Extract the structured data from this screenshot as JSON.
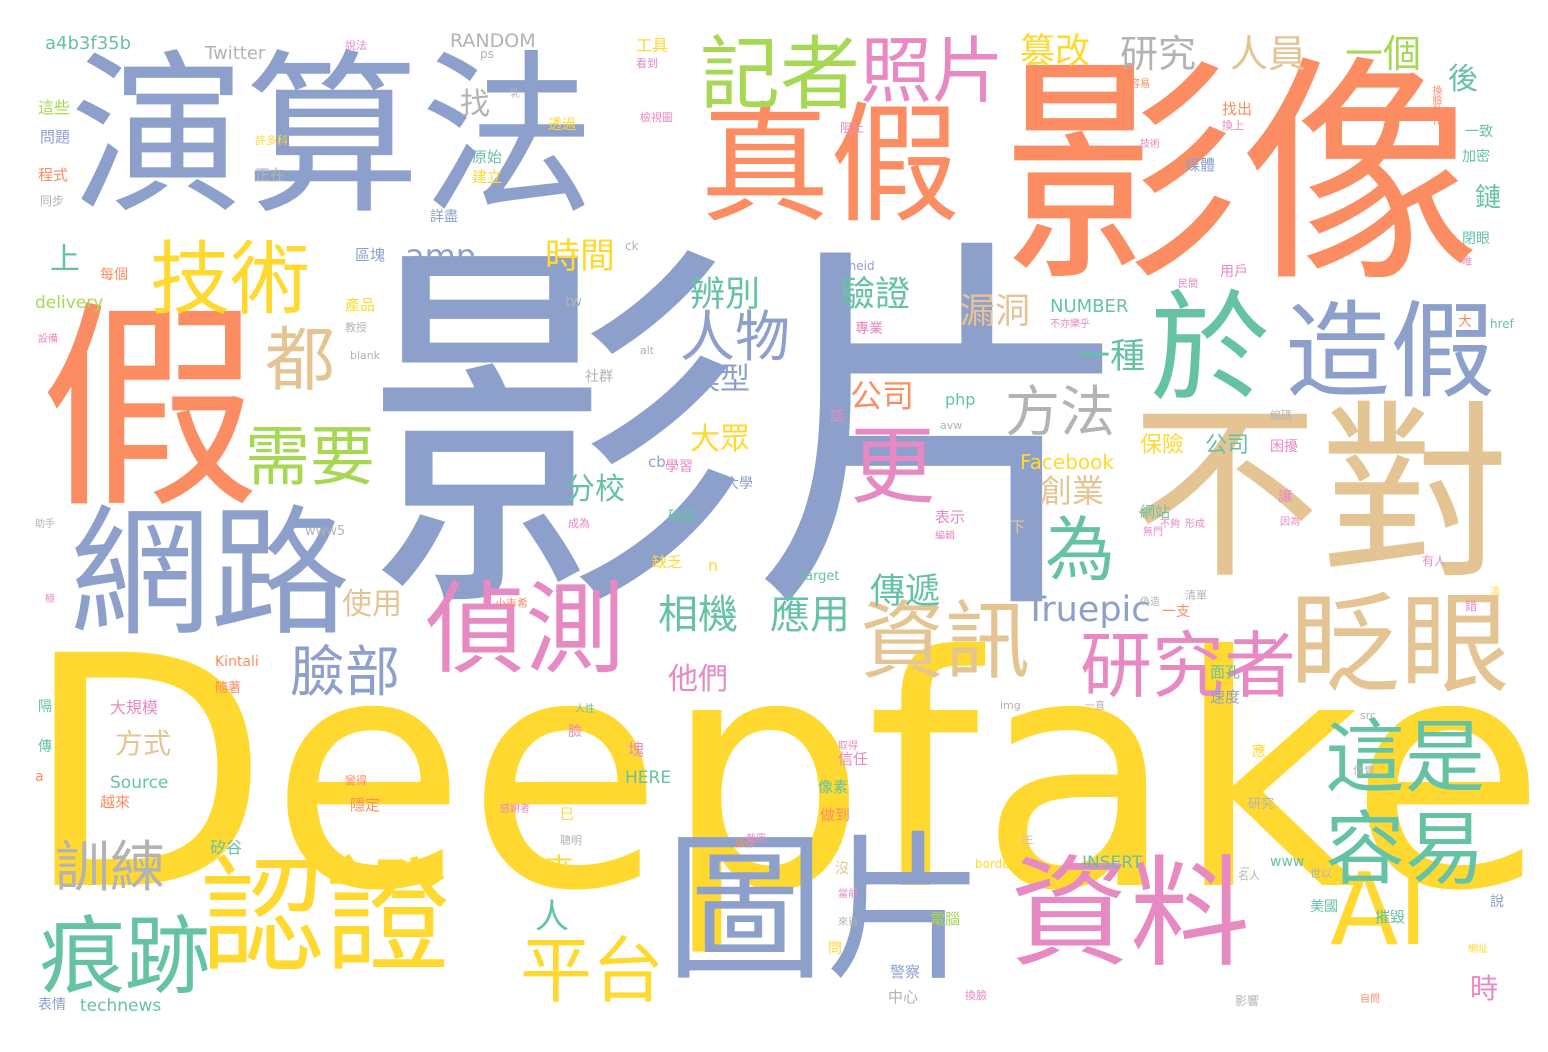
{
  "palette": {
    "blue": "#8da0cb",
    "orange": "#fc8d62",
    "green": "#66c2a5",
    "yellow": "#ffd92f",
    "tan": "#e5c494",
    "pink": "#e78ac3",
    "lime": "#a6d854",
    "gray": "#b3b3b3"
  },
  "words": [
    {
      "text": "影片",
      "color": "blue"
    },
    {
      "text": "Deepfake",
      "color": "yellow"
    },
    {
      "text": "影像",
      "color": "orange"
    },
    {
      "text": "演算法",
      "color": "blue"
    },
    {
      "text": "假",
      "color": "orange"
    },
    {
      "text": "不對",
      "color": "tan"
    },
    {
      "text": "真假",
      "color": "orange"
    },
    {
      "text": "於",
      "color": "green"
    },
    {
      "text": "網路",
      "color": "blue"
    },
    {
      "text": "圖片",
      "color": "blue"
    },
    {
      "text": "認證",
      "color": "yellow"
    },
    {
      "text": "資料",
      "color": "pink"
    },
    {
      "text": "AI",
      "color": "yellow"
    },
    {
      "text": "造假",
      "color": "blue"
    },
    {
      "text": "偵測",
      "color": "pink"
    },
    {
      "text": "眨眼",
      "color": "tan"
    },
    {
      "text": "資訊",
      "color": "tan"
    },
    {
      "text": "容易",
      "color": "green"
    },
    {
      "text": "這是",
      "color": "green"
    },
    {
      "text": "記者",
      "color": "lime"
    },
    {
      "text": "技術",
      "color": "yellow"
    },
    {
      "text": "照片",
      "color": "pink"
    },
    {
      "text": "更",
      "color": "pink"
    },
    {
      "text": "為",
      "color": "green"
    },
    {
      "text": "痕跡",
      "color": "green"
    },
    {
      "text": "平台",
      "color": "yellow"
    },
    {
      "text": "研究者",
      "color": "pink"
    },
    {
      "text": "都",
      "color": "tan"
    },
    {
      "text": "需要",
      "color": "lime"
    },
    {
      "text": "人物",
      "color": "blue"
    },
    {
      "text": "方法",
      "color": "gray"
    },
    {
      "text": "訓練",
      "color": "gray"
    },
    {
      "text": "臉部",
      "color": "blue"
    },
    {
      "text": "研究",
      "color": "gray"
    },
    {
      "text": "人員",
      "color": "tan"
    },
    {
      "text": "一個",
      "color": "lime"
    },
    {
      "text": "篡改",
      "color": "yellow"
    },
    {
      "text": "相機",
      "color": "green"
    },
    {
      "text": "應用",
      "color": "green"
    },
    {
      "text": "Truepic",
      "color": "blue"
    },
    {
      "text": "辨別",
      "color": "green"
    },
    {
      "text": "時間",
      "color": "yellow"
    },
    {
      "text": "驗證",
      "color": "green"
    },
    {
      "text": "漏洞",
      "color": "tan"
    },
    {
      "text": "一種",
      "color": "green"
    },
    {
      "text": "傳遞",
      "color": "green"
    },
    {
      "text": "amp",
      "color": "blue"
    },
    {
      "text": "模型",
      "color": "blue"
    },
    {
      "text": "公司",
      "color": "orange"
    },
    {
      "text": "大眾",
      "color": "yellow"
    },
    {
      "text": "分校",
      "color": "green"
    },
    {
      "text": "創業",
      "color": "tan"
    },
    {
      "text": "他們",
      "color": "pink"
    },
    {
      "text": "使用",
      "color": "tan"
    },
    {
      "text": "上",
      "color": "green"
    },
    {
      "text": "找",
      "color": "gray"
    },
    {
      "text": "後",
      "color": "green"
    },
    {
      "text": "人",
      "color": "green"
    },
    {
      "text": "來",
      "color": "yellow"
    },
    {
      "text": "方式",
      "color": "tan"
    },
    {
      "text": "時",
      "color": "pink"
    },
    {
      "text": "鏈",
      "color": "green"
    },
    {
      "text": "保險",
      "color": "yellow"
    },
    {
      "text": "公司",
      "color": "green"
    },
    {
      "text": "Facebook",
      "color": "yellow"
    },
    {
      "text": "NUMBER",
      "color": "green"
    },
    {
      "text": "RANDOM",
      "color": "gray"
    },
    {
      "text": "a4b3f35b",
      "color": "green"
    },
    {
      "text": "Twitter",
      "color": "gray"
    },
    {
      "text": "delivery",
      "color": "lime"
    },
    {
      "text": "technews",
      "color": "green"
    },
    {
      "text": "Source",
      "color": "green"
    },
    {
      "text": "HERE",
      "color": "green"
    },
    {
      "text": "INSERT",
      "color": "green"
    },
    {
      "text": "Kintali",
      "color": "orange"
    },
    {
      "text": "php",
      "color": "green"
    },
    {
      "text": "www5",
      "color": "gray"
    },
    {
      "text": "target",
      "color": "green"
    },
    {
      "text": "border",
      "color": "yellow"
    },
    {
      "text": "zoneid",
      "color": "blue"
    },
    {
      "text": "href",
      "color": "green"
    },
    {
      "text": "tw",
      "color": "gray"
    },
    {
      "text": "cb",
      "color": "blue"
    },
    {
      "text": "img",
      "color": "gray"
    },
    {
      "text": "www",
      "color": "green"
    },
    {
      "text": "blank",
      "color": "gray"
    },
    {
      "text": "alt",
      "color": "gray"
    },
    {
      "text": "avw",
      "color": "gray"
    },
    {
      "text": "src",
      "color": "gray"
    },
    {
      "text": "ck",
      "color": "gray"
    },
    {
      "text": "n",
      "color": "yellow"
    },
    {
      "text": "a",
      "color": "orange"
    },
    {
      "text": "ps",
      "color": "gray"
    },
    {
      "text": "這些",
      "color": "lime"
    },
    {
      "text": "問題",
      "color": "blue"
    },
    {
      "text": "程式",
      "color": "orange"
    },
    {
      "text": "同步",
      "color": "gray"
    },
    {
      "text": "正在",
      "color": "gray"
    },
    {
      "text": "許多科",
      "color": "yellow"
    },
    {
      "text": "每個",
      "color": "orange"
    },
    {
      "text": "區塊",
      "color": "blue"
    },
    {
      "text": "詳盡",
      "color": "blue"
    },
    {
      "text": "原始",
      "color": "green"
    },
    {
      "text": "建立",
      "color": "yellow"
    },
    {
      "text": "透過",
      "color": "yellow"
    },
    {
      "text": "工具",
      "color": "yellow"
    },
    {
      "text": "看到",
      "color": "pink"
    },
    {
      "text": "說法",
      "color": "pink"
    },
    {
      "text": "檢視圖",
      "color": "pink"
    },
    {
      "text": "阻止",
      "color": "pink"
    },
    {
      "text": "產品",
      "color": "yellow"
    },
    {
      "text": "教授",
      "color": "gray"
    },
    {
      "text": "社群",
      "color": "gray"
    },
    {
      "text": "專業",
      "color": "pink"
    },
    {
      "text": "學習",
      "color": "pink"
    },
    {
      "text": "大學",
      "color": "blue"
    },
    {
      "text": "表示",
      "color": "pink"
    },
    {
      "text": "破綻",
      "color": "green"
    },
    {
      "text": "缺乏",
      "color": "yellow"
    },
    {
      "text": "大規模",
      "color": "pink"
    },
    {
      "text": "隨著",
      "color": "orange"
    },
    {
      "text": "越來",
      "color": "orange"
    },
    {
      "text": "信任",
      "color": "pink"
    },
    {
      "text": "像素",
      "color": "green"
    },
    {
      "text": "做到",
      "color": "orange"
    },
    {
      "text": "隱定",
      "color": "orange"
    },
    {
      "text": "矽谷",
      "color": "green"
    },
    {
      "text": "電腦",
      "color": "lime"
    },
    {
      "text": "警察",
      "color": "blue"
    },
    {
      "text": "中心",
      "color": "gray"
    },
    {
      "text": "換臉",
      "color": "pink"
    },
    {
      "text": "美國",
      "color": "green"
    },
    {
      "text": "摧毀",
      "color": "green"
    },
    {
      "text": "面孔",
      "color": "green"
    },
    {
      "text": "速度",
      "color": "blue"
    },
    {
      "text": "網站",
      "color": "green"
    },
    {
      "text": "媒體",
      "color": "blue"
    },
    {
      "text": "找出",
      "color": "orange"
    },
    {
      "text": "換上",
      "color": "pink"
    },
    {
      "text": "技術",
      "color": "pink"
    },
    {
      "text": "一致",
      "color": "green"
    },
    {
      "text": "加密",
      "color": "green"
    },
    {
      "text": "閉眼",
      "color": "green"
    },
    {
      "text": "用戶",
      "color": "pink"
    },
    {
      "text": "困擾",
      "color": "pink"
    },
    {
      "text": "編碼",
      "color": "gray"
    },
    {
      "text": "讓",
      "color": "pink"
    },
    {
      "text": "因為",
      "color": "pink"
    },
    {
      "text": "無門",
      "color": "pink"
    },
    {
      "text": "有人",
      "color": "pink"
    },
    {
      "text": "錯",
      "color": "pink"
    },
    {
      "text": "研究",
      "color": "gray"
    },
    {
      "text": "年",
      "color": "tan"
    },
    {
      "text": "下",
      "color": "tan"
    },
    {
      "text": "巳",
      "color": "yellow"
    },
    {
      "text": "塊",
      "color": "pink"
    },
    {
      "text": "隔",
      "color": "green"
    },
    {
      "text": "傳",
      "color": "green"
    },
    {
      "text": "臉",
      "color": "pink"
    },
    {
      "text": "沒",
      "color": "tan"
    },
    {
      "text": "大",
      "color": "orange"
    },
    {
      "text": "問",
      "color": "yellow"
    },
    {
      "text": "說",
      "color": "blue"
    },
    {
      "text": "應",
      "color": "yellow"
    },
    {
      "text": "話",
      "color": "pink"
    },
    {
      "text": "一支",
      "color": "orange"
    },
    {
      "text": "清單",
      "color": "gray"
    },
    {
      "text": "一直",
      "color": "gray"
    },
    {
      "text": "影響",
      "color": "gray"
    },
    {
      "text": "自問",
      "color": "orange"
    },
    {
      "text": "網址",
      "color": "yellow"
    },
    {
      "text": "世以",
      "color": "gray"
    },
    {
      "text": "名人",
      "color": "gray"
    },
    {
      "text": "信實",
      "color": "gray"
    },
    {
      "text": "小市希",
      "color": "orange"
    },
    {
      "text": "成為",
      "color": "pink"
    },
    {
      "text": "人性",
      "color": "green"
    },
    {
      "text": "聰明",
      "color": "gray"
    },
    {
      "text": "操作",
      "color": "orange"
    },
    {
      "text": "變得",
      "color": "orange"
    },
    {
      "text": "感謝者",
      "color": "pink"
    },
    {
      "text": "截圖",
      "color": "pink"
    },
    {
      "text": "當前",
      "color": "pink"
    },
    {
      "text": "取得",
      "color": "pink"
    },
    {
      "text": "編輯",
      "color": "pink"
    },
    {
      "text": "偽造",
      "color": "gray"
    },
    {
      "text": "來自",
      "color": "gray"
    },
    {
      "text": "換臉動作",
      "color": "orange"
    },
    {
      "text": "容易",
      "color": "orange"
    },
    {
      "text": "唯",
      "color": "pink"
    },
    {
      "text": "乳",
      "color": "gray"
    },
    {
      "text": "流",
      "color": "yellow"
    },
    {
      "text": "極",
      "color": "pink"
    },
    {
      "text": "不夠",
      "color": "pink"
    },
    {
      "text": "表情",
      "color": "blue"
    },
    {
      "text": "形成",
      "color": "pink"
    },
    {
      "text": "民間",
      "color": "pink"
    },
    {
      "text": "不亦樂乎",
      "color": "pink"
    },
    {
      "text": "設備",
      "color": "pink"
    },
    {
      "text": "助手",
      "color": "gray"
    },
    {
      "text": "一",
      "color": "gray"
    }
  ]
}
